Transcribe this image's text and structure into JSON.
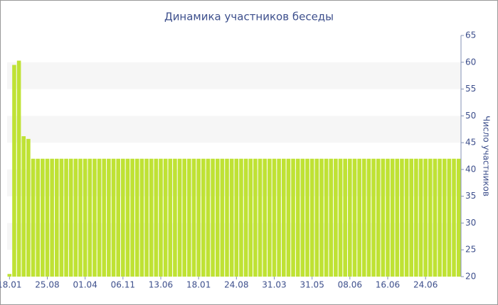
{
  "chart_data": {
    "type": "bar",
    "title": "Динамика участников беседы",
    "y_axis_label": "Число участников",
    "categories": [
      "18.01",
      null,
      null,
      null,
      null,
      null,
      null,
      null,
      "25.08",
      null,
      null,
      null,
      null,
      null,
      null,
      null,
      "01.04",
      null,
      null,
      null,
      null,
      null,
      null,
      null,
      "06.11",
      null,
      null,
      null,
      null,
      null,
      null,
      null,
      "13.06",
      null,
      null,
      null,
      null,
      null,
      null,
      null,
      "18.01",
      null,
      null,
      null,
      null,
      null,
      null,
      null,
      "24.08",
      null,
      null,
      null,
      null,
      null,
      null,
      null,
      "31.03",
      null,
      null,
      null,
      null,
      null,
      null,
      null,
      "31.05",
      null,
      null,
      null,
      null,
      null,
      null,
      null,
      "08.06",
      null,
      null,
      null,
      null,
      null,
      null,
      null,
      "16.06",
      null,
      null,
      null,
      null,
      null,
      null,
      null,
      "24.06",
      null,
      null,
      null,
      null,
      null,
      null,
      null
    ],
    "values": [
      20.5,
      59.5,
      60.3,
      46.2,
      45.7,
      42,
      42,
      42,
      42,
      42,
      42,
      42,
      42,
      42,
      42,
      42,
      42,
      42,
      42,
      42,
      42,
      42,
      42,
      42,
      42,
      42,
      42,
      42,
      42,
      42,
      42,
      42,
      42,
      42,
      42,
      42,
      42,
      42,
      42,
      42,
      42,
      42,
      42,
      42,
      42,
      42,
      42,
      42,
      42,
      42,
      42,
      42,
      42,
      42,
      42,
      42,
      42,
      42,
      42,
      42,
      42,
      42,
      42,
      42,
      42,
      42,
      42,
      42,
      42,
      42,
      42,
      42,
      42,
      42,
      42,
      42,
      42,
      42,
      42,
      42,
      42,
      42,
      42,
      42,
      42,
      42,
      42,
      42,
      42,
      42,
      42,
      42,
      42,
      42,
      42,
      42
    ],
    "color": "#bfe234",
    "ylim": [
      20,
      65
    ],
    "yticks": [
      20,
      25,
      30,
      35,
      40,
      45,
      50,
      55,
      60,
      65
    ],
    "grid": true
  }
}
